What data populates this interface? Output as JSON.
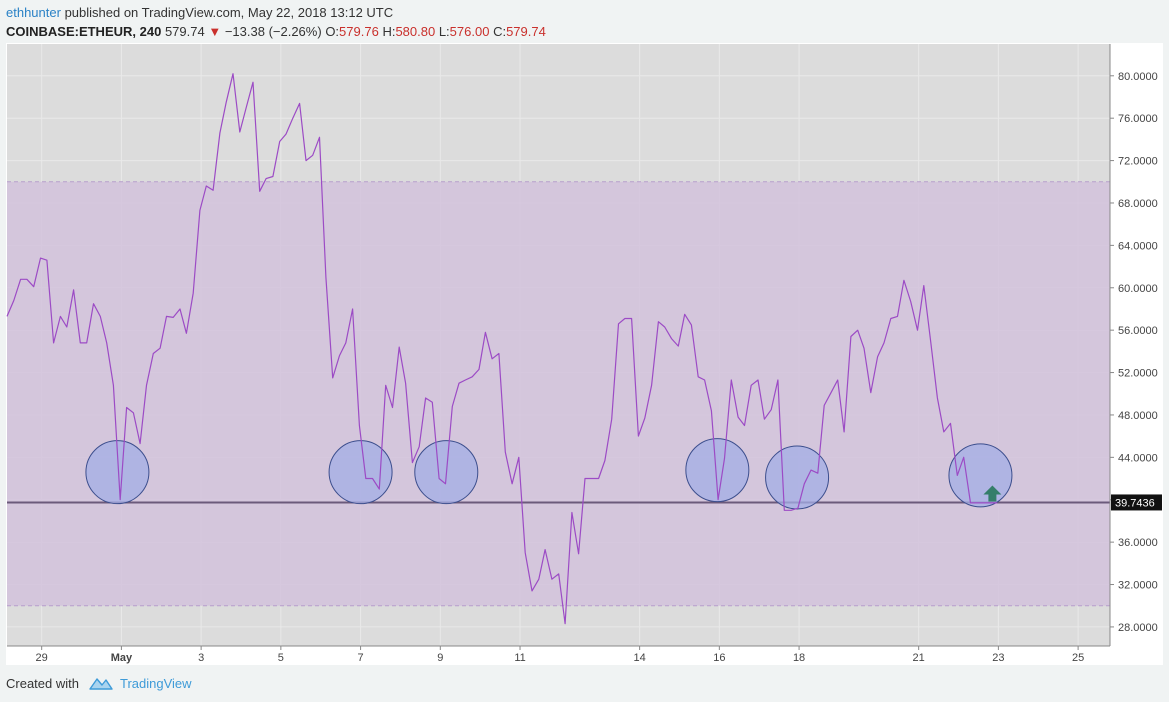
{
  "header": {
    "author": "ethhunter",
    "published_text": "published on TradingView.com, May 22, 2018 13:12 UTC",
    "symbol": "COINBASE:ETHEUR, 240",
    "last": "579.74",
    "change_arrow": "▼",
    "change": "−13.38 (−2.26%)",
    "o_label": "O:",
    "o_value": "579.76",
    "h_label": "H:",
    "h_value": "580.80",
    "l_label": "L:",
    "l_value": "576.00",
    "c_label": "C:",
    "c_value": "579.74"
  },
  "footer": {
    "created_with": "Created with",
    "brand": "TradingView"
  },
  "chart_data": {
    "type": "line",
    "indicator_band": [
      30,
      70
    ],
    "ylim": [
      26.2,
      83.0
    ],
    "y_ticks": [
      {
        "value": 28,
        "label": "28.0000"
      },
      {
        "value": 32,
        "label": "32.0000"
      },
      {
        "value": 36,
        "label": "36.0000"
      },
      {
        "value": 40,
        "label": "40.0000"
      },
      {
        "value": 44,
        "label": "44.0000"
      },
      {
        "value": 48,
        "label": "48.0000"
      },
      {
        "value": 52,
        "label": "52.0000"
      },
      {
        "value": 56,
        "label": "56.0000"
      },
      {
        "value": 60,
        "label": "60.0000"
      },
      {
        "value": 64,
        "label": "64.0000"
      },
      {
        "value": 68,
        "label": "68.0000"
      },
      {
        "value": 72,
        "label": "72.0000"
      },
      {
        "value": 76,
        "label": "76.0000"
      },
      {
        "value": 80,
        "label": "80.0000"
      }
    ],
    "x_range": [
      27.13,
      26.27
    ],
    "x_ticks": [
      {
        "x": 28,
        "label": "29",
        "bold": false
      },
      {
        "x": 30,
        "label": "May",
        "bold": true
      },
      {
        "x": 32,
        "label": "3",
        "bold": false
      },
      {
        "x": 34,
        "label": "5",
        "bold": false
      },
      {
        "x": 36,
        "label": "7",
        "bold": false
      },
      {
        "x": 38,
        "label": "9",
        "bold": false
      },
      {
        "x": 40,
        "label": "11",
        "bold": false
      },
      {
        "x": 43,
        "label": "14",
        "bold": false
      },
      {
        "x": 45,
        "label": "16",
        "bold": false
      },
      {
        "x": 47,
        "label": "18",
        "bold": false
      },
      {
        "x": 50,
        "label": "21",
        "bold": false
      },
      {
        "x": 52,
        "label": "23",
        "bold": false
      },
      {
        "x": 54,
        "label": "25",
        "bold": false
      }
    ],
    "horizontal_line": {
      "value": 39.7436,
      "label": "39.7436"
    },
    "series": [
      {
        "values": [
          [
            27.13,
            57.3
          ],
          [
            27.3,
            58.8
          ],
          [
            27.47,
            60.8
          ],
          [
            27.63,
            60.8
          ],
          [
            27.8,
            60.1
          ],
          [
            27.97,
            62.8
          ],
          [
            28.13,
            62.6
          ],
          [
            28.3,
            54.8
          ],
          [
            28.47,
            57.3
          ],
          [
            28.63,
            56.3
          ],
          [
            28.8,
            59.8
          ],
          [
            28.97,
            54.8
          ],
          [
            29.13,
            54.8
          ],
          [
            29.3,
            58.5
          ],
          [
            29.47,
            57.3
          ],
          [
            29.63,
            54.8
          ],
          [
            29.8,
            50.8
          ],
          [
            29.97,
            40.0
          ],
          [
            30.13,
            48.7
          ],
          [
            30.3,
            48.2
          ],
          [
            30.47,
            45.3
          ],
          [
            30.63,
            50.8
          ],
          [
            30.8,
            53.8
          ],
          [
            30.97,
            54.3
          ],
          [
            31.13,
            57.3
          ],
          [
            31.3,
            57.2
          ],
          [
            31.47,
            58.0
          ],
          [
            31.63,
            55.7
          ],
          [
            31.8,
            59.5
          ],
          [
            31.97,
            67.3
          ],
          [
            32.13,
            69.6
          ],
          [
            32.3,
            69.2
          ],
          [
            32.47,
            74.6
          ],
          [
            32.63,
            77.5
          ],
          [
            32.8,
            80.2
          ],
          [
            32.97,
            74.7
          ],
          [
            33.13,
            77.0
          ],
          [
            33.3,
            79.4
          ],
          [
            33.47,
            69.1
          ],
          [
            33.63,
            70.3
          ],
          [
            33.8,
            70.5
          ],
          [
            33.97,
            73.8
          ],
          [
            34.13,
            74.5
          ],
          [
            34.3,
            76.0
          ],
          [
            34.47,
            77.4
          ],
          [
            34.63,
            72.0
          ],
          [
            34.8,
            72.5
          ],
          [
            34.97,
            74.2
          ],
          [
            35.13,
            61.0
          ],
          [
            35.3,
            51.5
          ],
          [
            35.47,
            53.6
          ],
          [
            35.63,
            54.8
          ],
          [
            35.8,
            58.0
          ],
          [
            35.97,
            47.0
          ],
          [
            36.13,
            42.0
          ],
          [
            36.3,
            42.0
          ],
          [
            36.47,
            41.0
          ],
          [
            36.63,
            50.8
          ],
          [
            36.8,
            48.7
          ],
          [
            36.97,
            54.4
          ],
          [
            37.13,
            51.0
          ],
          [
            37.3,
            43.5
          ],
          [
            37.47,
            45.0
          ],
          [
            37.63,
            49.6
          ],
          [
            37.8,
            49.2
          ],
          [
            37.97,
            42.0
          ],
          [
            38.13,
            41.5
          ],
          [
            38.3,
            48.8
          ],
          [
            38.47,
            51.0
          ],
          [
            38.63,
            51.3
          ],
          [
            38.8,
            51.6
          ],
          [
            38.97,
            52.3
          ],
          [
            39.13,
            55.8
          ],
          [
            39.3,
            53.3
          ],
          [
            39.47,
            53.8
          ],
          [
            39.63,
            44.5
          ],
          [
            39.8,
            41.5
          ],
          [
            39.97,
            44.0
          ],
          [
            40.13,
            35.0
          ],
          [
            40.3,
            31.4
          ],
          [
            40.47,
            32.5
          ],
          [
            40.63,
            35.3
          ],
          [
            40.8,
            32.5
          ],
          [
            40.97,
            33.0
          ],
          [
            41.13,
            28.3
          ],
          [
            41.3,
            38.8
          ],
          [
            41.47,
            34.9
          ],
          [
            41.63,
            42.0
          ],
          [
            41.8,
            42.0
          ],
          [
            41.97,
            42.0
          ],
          [
            42.13,
            43.7
          ],
          [
            42.3,
            47.6
          ],
          [
            42.47,
            56.6
          ],
          [
            42.63,
            57.1
          ],
          [
            42.8,
            57.1
          ],
          [
            42.97,
            46.0
          ],
          [
            43.13,
            47.7
          ],
          [
            43.3,
            50.8
          ],
          [
            43.47,
            56.8
          ],
          [
            43.63,
            56.3
          ],
          [
            43.8,
            55.2
          ],
          [
            43.97,
            54.5
          ],
          [
            44.13,
            57.5
          ],
          [
            44.3,
            56.5
          ],
          [
            44.47,
            51.6
          ],
          [
            44.63,
            51.3
          ],
          [
            44.8,
            48.4
          ],
          [
            44.97,
            40.0
          ],
          [
            45.13,
            43.9
          ],
          [
            45.3,
            51.3
          ],
          [
            45.47,
            47.8
          ],
          [
            45.63,
            47.0
          ],
          [
            45.8,
            50.8
          ],
          [
            45.97,
            51.3
          ],
          [
            46.13,
            47.6
          ],
          [
            46.3,
            48.5
          ],
          [
            46.47,
            51.3
          ],
          [
            46.63,
            39.0
          ],
          [
            46.8,
            39.0
          ],
          [
            46.97,
            39.2
          ],
          [
            47.13,
            41.5
          ],
          [
            47.3,
            42.8
          ],
          [
            47.47,
            42.5
          ],
          [
            47.63,
            48.9
          ],
          [
            47.8,
            50.1
          ],
          [
            47.97,
            51.3
          ],
          [
            48.13,
            46.4
          ],
          [
            48.3,
            55.4
          ],
          [
            48.47,
            56.0
          ],
          [
            48.63,
            54.3
          ],
          [
            48.8,
            50.1
          ],
          [
            48.97,
            53.5
          ],
          [
            49.13,
            54.8
          ],
          [
            49.3,
            57.1
          ],
          [
            49.47,
            57.3
          ],
          [
            49.63,
            60.7
          ],
          [
            49.8,
            58.7
          ],
          [
            49.97,
            56.0
          ],
          [
            50.13,
            60.2
          ],
          [
            50.3,
            55.0
          ],
          [
            50.47,
            49.6
          ],
          [
            50.63,
            46.4
          ],
          [
            50.8,
            47.2
          ],
          [
            50.97,
            42.3
          ],
          [
            51.13,
            44.0
          ],
          [
            51.3,
            39.7
          ],
          [
            51.47,
            39.7
          ],
          [
            51.63,
            39.7
          ],
          [
            51.8,
            39.7
          ],
          [
            51.97,
            39.7
          ]
        ]
      }
    ],
    "highlight_circles_at": [
      [
        29.9,
        42.6
      ],
      [
        36.0,
        42.6
      ],
      [
        38.15,
        42.6
      ],
      [
        44.95,
        42.8
      ],
      [
        46.95,
        42.1
      ],
      [
        51.55,
        42.3
      ]
    ],
    "arrow_marker_at": [
      51.85,
      40.4
    ],
    "colors": {
      "series": "#9c4bc5",
      "band": "#d2c2dc",
      "band_border": "#b79ecc",
      "plot_bg": "#dcdcdc",
      "grid": "#e9e9e9",
      "hline": "#6b5a7b",
      "circle_fill": "#a3aee6",
      "circle_stroke": "#3c4e8d",
      "arrow": "#357e6a",
      "label_bg": "#111111"
    }
  }
}
